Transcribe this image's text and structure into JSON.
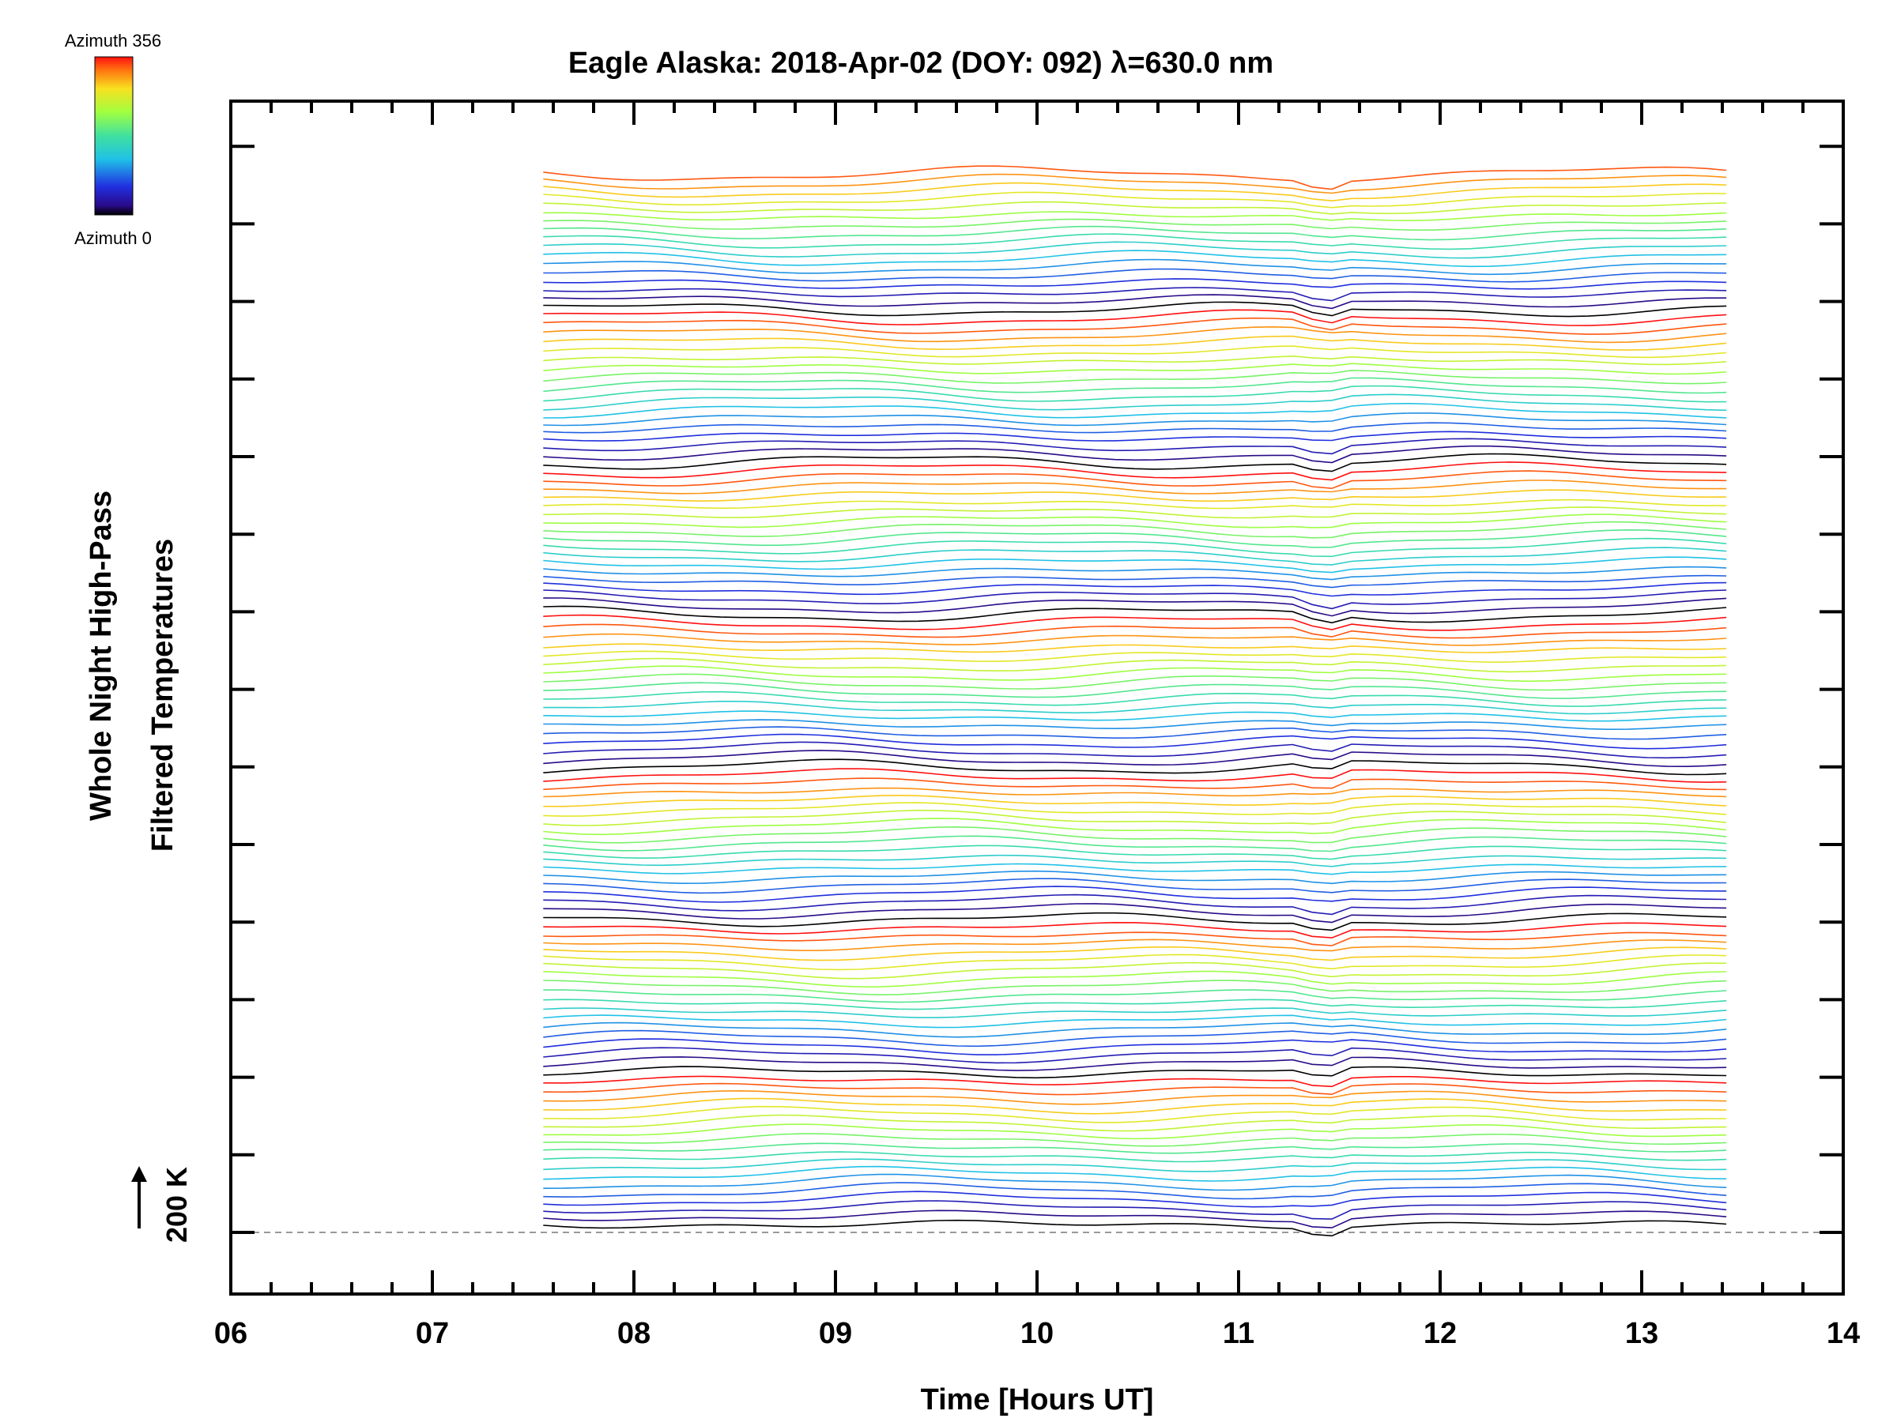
{
  "chart_data": {
    "type": "line",
    "title": "Eagle Alaska: 2018-Apr-02 (DOY: 092) λ=630.0 nm",
    "xlabel": "Time [Hours UT]",
    "ylabel_line1": "Whole Night High-Pass",
    "ylabel_line2": "Filtered Temperatures",
    "xlim": [
      6,
      14
    ],
    "x_tick_labels": [
      "06",
      "07",
      "08",
      "09",
      "10",
      "11",
      "12",
      "13",
      "14"
    ],
    "x_ticks": [
      6,
      7,
      8,
      9,
      10,
      11,
      12,
      13,
      14
    ],
    "x_minor_step": 0.2,
    "scale_bar_label": "200 K",
    "colorbar": {
      "top_label": "Azimuth 356",
      "bottom_label": "Azimuth 0",
      "colormap": "rainbow"
    },
    "data_start_hour": 7.55,
    "data_end_hour": 13.42,
    "num_traces": 125,
    "azimuth_cycle_length": 18,
    "gridlines": false,
    "baseline": "dashed"
  }
}
